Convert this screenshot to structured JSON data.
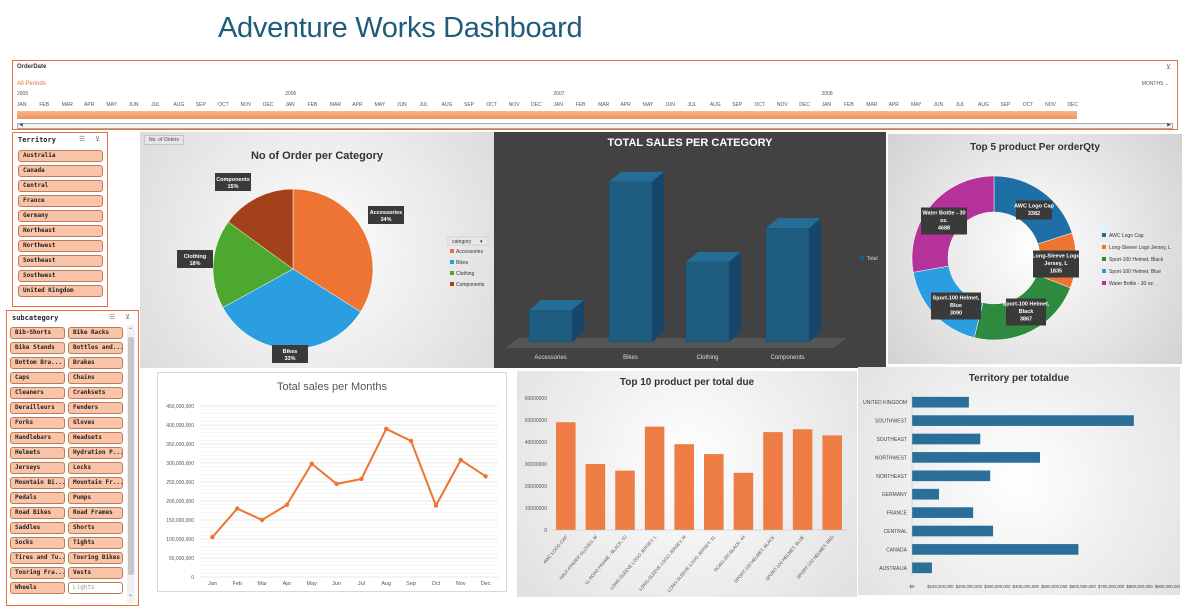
{
  "dashboard_title": "Adventure Works Dashboard",
  "timeline": {
    "header": "OrderDate",
    "all_periods": "All Periods",
    "level_label": "MONTHS",
    "years": [
      "2005",
      "2006",
      "2007",
      "2008"
    ],
    "months": [
      "JAN",
      "FEB",
      "MAR",
      "APR",
      "MAY",
      "JUN",
      "JUL",
      "AUG",
      "SEP",
      "OCT",
      "NOV",
      "DEC"
    ]
  },
  "territory_slicer": {
    "title": "Territory",
    "items": [
      "Australia",
      "Canada",
      "Central",
      "France",
      "Germany",
      "Northeast",
      "Northwest",
      "Southeast",
      "Southwest",
      "United Kingdom"
    ]
  },
  "subcategory_slicer": {
    "title": "subcategory",
    "items": [
      [
        "Bib-Shorts",
        "Bike Racks"
      ],
      [
        "Bike Stands",
        "Bottles and..."
      ],
      [
        "Bottom Bra...",
        "Brakes"
      ],
      [
        "Caps",
        "Chains"
      ],
      [
        "Cleaners",
        "Cranksets"
      ],
      [
        "Derailleurs",
        "Fenders"
      ],
      [
        "Forks",
        "Gloves"
      ],
      [
        "Handlebars",
        "Headsets"
      ],
      [
        "Helmets",
        "Hydration P..."
      ],
      [
        "Jerseys",
        "Locks"
      ],
      [
        "Mountain Bi...",
        "Mountain Fr..."
      ],
      [
        "Pedals",
        "Pumps"
      ],
      [
        "Road Bikes",
        "Road Frames"
      ],
      [
        "Saddles",
        "Shorts"
      ],
      [
        "Socks",
        "Tights"
      ],
      [
        "Tires and Tu...",
        "Touring Bikes"
      ],
      [
        "Touring Fra...",
        "Vests"
      ],
      [
        "Wheels",
        "Lights"
      ]
    ]
  },
  "chart_data": [
    {
      "type": "pie",
      "title": "No of Order per Category",
      "field_button": "No. of Orders",
      "legend_title": "category",
      "legend_position": "right",
      "categories": [
        "Accessories",
        "Bikes",
        "Clothing",
        "Components"
      ],
      "values": [
        34,
        33,
        18,
        15
      ],
      "labels": [
        "34%",
        "33%",
        "18%",
        "15%"
      ],
      "colors": [
        "#ed7433",
        "#2a9ee0",
        "#4ca82e",
        "#a3411a"
      ]
    },
    {
      "type": "bar",
      "title": "TOTAL SALES PER CATEGORY",
      "legend": [
        "Total"
      ],
      "categories": [
        "Accessories",
        "Bikes",
        "Clothing",
        "Components"
      ],
      "values": [
        0.18,
        0.9,
        0.45,
        0.64
      ],
      "color": "#1e5d80"
    },
    {
      "type": "pie",
      "title": "Top 5 product Per orderQty",
      "legend_position": "right",
      "categories": [
        "AWC Logo Cap",
        "Long-Sleeve Logo Jersey, L",
        "Sport-100 Helmet, Black",
        "Sport-100 Helmet, Blue",
        "Water Bottle - 30 oz."
      ],
      "values": [
        3382,
        1835,
        3867,
        3090,
        4688
      ],
      "labels": [
        [
          "AWC Logo Cap",
          "3382"
        ],
        [
          "Long-Sleeve Logo",
          "Jersey, L",
          "1835"
        ],
        [
          "Sport-100 Helmet,",
          "Black",
          "3867"
        ],
        [
          "Sport-100 Helmet,",
          "Blue",
          "3090"
        ],
        [
          "Water Bottle - 30",
          "oz.",
          "4688"
        ]
      ],
      "legend": [
        "AWC Logo Cap",
        "Long-Sleeve Logo Jersey, L",
        "Sport-100 Helmet, Black",
        "Sport-100 Helmet, Blue",
        "Water Bottle - 30 oz."
      ],
      "colors": [
        "#1e6fa6",
        "#ed7433",
        "#2e8a3e",
        "#2a9ee0",
        "#b4329a"
      ]
    },
    {
      "type": "line",
      "title": "Total sales per Months",
      "categories": [
        "Jan",
        "Feb",
        "Mar",
        "Apr",
        "May",
        "Jun",
        "Jul",
        "Aug",
        "Sep",
        "Oct",
        "Nov",
        "Dec"
      ],
      "values": [
        105000000,
        180000000,
        150000000,
        190000000,
        298000000,
        245000000,
        258000000,
        390000000,
        358000000,
        188000000,
        308000000,
        265000000
      ],
      "ylim": [
        0,
        450000000
      ],
      "yticks": [
        "0",
        "50,000,000",
        "100,000,000",
        "150,000,000",
        "200,000,000",
        "250,000,000",
        "300,000,000",
        "350,000,000",
        "400,000,000",
        "450,000,000"
      ],
      "color": "#ed7433"
    },
    {
      "type": "bar",
      "title": "Top 10 product per total due",
      "categories": [
        "AWC LOGO CAP",
        "HALF-FINGER GLOVES, M",
        "LL ROAD FRAME - BLACK, 52",
        "LONG-SLEEVE LOGO JERSEY, L",
        "LONG-SLEEVE LOGO JERSEY, M",
        "LONG-SLEEVE LOGO JERSEY, XL",
        "ROAD-250 BLACK, 44",
        "SPORT-100 HELMET, BLACK",
        "SPORT-100 HELMET, BLUE",
        "SPORT-100 HELMET, RED"
      ],
      "values": [
        49000000,
        30000000,
        27000000,
        47000000,
        39000000,
        34500000,
        26000000,
        44500000,
        45800000,
        43000000
      ],
      "ylim": [
        0,
        60000000
      ],
      "yticks": [
        "0",
        "10000000",
        "20000000",
        "30000000",
        "40000000",
        "50000000",
        "60000000"
      ],
      "color": "#ed7d45"
    },
    {
      "type": "bar",
      "orientation": "horizontal",
      "title": "Territory per totaldue",
      "categories": [
        "UNITED KINGDOM",
        "SOUTHWEST",
        "SOUTHEAST",
        "NORTHWEST",
        "NORTHEAST",
        "GERMANY",
        "FRANCE",
        "CENTRAL",
        "CANADA",
        "AUSTRALIA"
      ],
      "values": [
        200000000,
        780000000,
        240000000,
        450000000,
        275000000,
        95000000,
        215000000,
        285000000,
        585000000,
        70000000
      ],
      "xlim": [
        0,
        900000000
      ],
      "xticks": [
        "$0",
        "$100,000,000",
        "$200,000,000",
        "$300,000,000",
        "$400,000,000",
        "$500,000,000",
        "$600,000,000",
        "$700,000,000",
        "$800,000,000",
        "$900,000,000"
      ],
      "color": "#2b6f99"
    }
  ]
}
